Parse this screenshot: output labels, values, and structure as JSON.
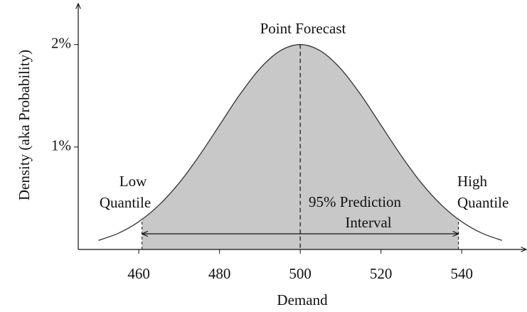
{
  "chart_data": {
    "type": "line",
    "x_label": "Demand",
    "y_label": "Density (aka Probability)",
    "x": [
      450,
      455,
      460,
      465,
      470,
      475,
      480,
      485,
      490,
      495,
      500,
      505,
      510,
      515,
      520,
      525,
      530,
      535,
      540,
      545,
      550
    ],
    "values": [
      0.088,
      0.159,
      0.271,
      0.433,
      0.649,
      0.916,
      1.213,
      1.51,
      1.765,
      1.938,
      2,
      1.938,
      1.765,
      1.51,
      1.213,
      0.916,
      0.649,
      0.433,
      0.271,
      0.159,
      0.088
    ],
    "color": "#333333",
    "fill_color": "#c8c8c8",
    "point_forecast": 500,
    "interval": [
      460.8,
      539.2
    ],
    "annotations": {
      "point_forecast": "Point Forecast",
      "low_quantile": [
        "Low",
        "Quantile"
      ],
      "high_quantile": [
        "High",
        "Quantile"
      ],
      "interval": [
        "95% Prediction",
        "Interval"
      ]
    },
    "xlim": [
      445,
      556
    ],
    "ylim": [
      0,
      2.4
    ],
    "xticks": [
      460,
      480,
      500,
      520,
      540
    ],
    "yticks": [
      {
        "value": 1,
        "label": "1%"
      },
      {
        "value": 2,
        "label": "2%"
      }
    ]
  }
}
